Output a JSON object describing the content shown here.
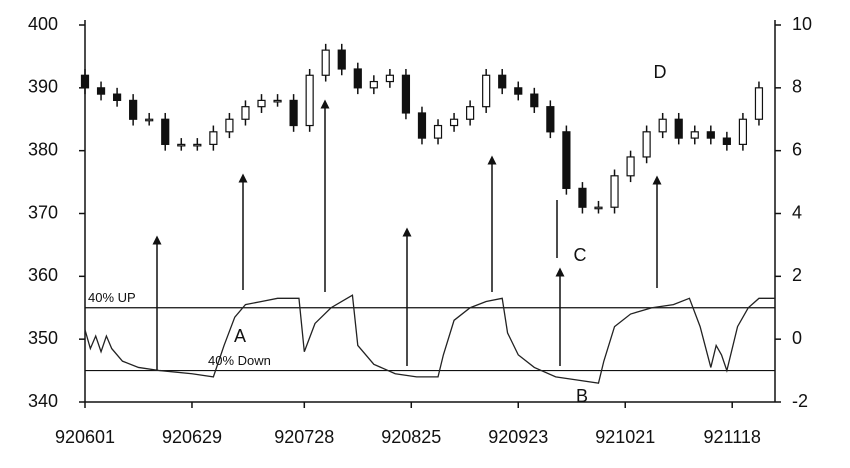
{
  "chart_data": {
    "type": "candlestick",
    "x": [
      0,
      3,
      6,
      9,
      12,
      15,
      18,
      21,
      24,
      27,
      30,
      33,
      36,
      39,
      42,
      45,
      48,
      51,
      54,
      57,
      60,
      63,
      66,
      69,
      72,
      75,
      78,
      81,
      84,
      87,
      90,
      93,
      96,
      99,
      102,
      105,
      108,
      111,
      114,
      117,
      120,
      123,
      126
    ],
    "open": [
      392,
      390,
      389,
      388,
      385,
      385,
      381,
      381,
      381,
      383,
      385,
      387,
      388,
      388,
      384,
      392,
      396,
      393,
      390,
      391,
      392,
      386,
      382,
      384,
      385,
      387,
      392,
      390,
      389,
      387,
      383,
      374,
      371,
      371,
      376,
      379,
      383,
      385,
      382,
      383,
      382,
      381,
      385
    ],
    "high": [
      393,
      391,
      390,
      389,
      386,
      386,
      382,
      382,
      384,
      386,
      388,
      389,
      389,
      389,
      393,
      397,
      397,
      394,
      392,
      393,
      393,
      387,
      385,
      386,
      388,
      393,
      393,
      391,
      390,
      388,
      384,
      375,
      372,
      377,
      380,
      384,
      386,
      386,
      384,
      384,
      383,
      386,
      391
    ],
    "low": [
      389,
      388,
      387,
      384,
      384,
      380,
      380,
      380,
      380,
      382,
      384,
      386,
      387,
      383,
      383,
      391,
      392,
      389,
      389,
      390,
      385,
      381,
      381,
      383,
      384,
      386,
      389,
      388,
      386,
      382,
      373,
      370,
      370,
      370,
      375,
      378,
      382,
      381,
      381,
      381,
      380,
      380,
      384
    ],
    "close": [
      390,
      389,
      388,
      385,
      385,
      381,
      381,
      381,
      383,
      385,
      387,
      388,
      388,
      384,
      392,
      396,
      393,
      390,
      391,
      392,
      386,
      382,
      384,
      385,
      387,
      392,
      390,
      389,
      387,
      383,
      374,
      371,
      371,
      376,
      379,
      383,
      385,
      382,
      383,
      382,
      381,
      385,
      390
    ],
    "color": "#111111",
    "xlim": [
      0,
      129
    ],
    "xticks": [
      {
        "value": 0,
        "label": "920601"
      },
      {
        "value": 20,
        "label": "920629"
      },
      {
        "value": 41,
        "label": "920728"
      },
      {
        "value": 61,
        "label": "920825"
      },
      {
        "value": 81,
        "label": "920923"
      },
      {
        "value": 101,
        "label": "921021"
      },
      {
        "value": 121,
        "label": "921118"
      }
    ],
    "ylim": [
      340,
      400
    ],
    "yticks": [
      340,
      350,
      360,
      370,
      380,
      390,
      400
    ],
    "y2lim": [
      -2,
      10
    ],
    "y2ticks": [
      -2,
      0,
      2,
      4,
      6,
      8,
      10
    ],
    "oscillator": {
      "axis": "y2",
      "color": "#222222",
      "x": [
        0,
        1,
        2,
        3,
        4,
        5,
        7,
        10,
        14,
        20,
        24,
        26,
        28,
        30,
        33,
        36,
        40,
        41,
        43,
        46,
        49,
        50,
        51,
        54,
        58,
        62,
        66,
        67,
        69,
        72,
        75,
        78,
        79,
        81,
        84,
        88,
        92,
        96,
        97,
        99,
        102,
        106,
        110,
        113,
        115,
        117,
        118,
        119,
        120,
        122,
        124,
        126,
        129
      ],
      "values": [
        0.3,
        -0.3,
        0.1,
        -0.4,
        0.1,
        -0.3,
        -0.7,
        -0.9,
        -1.0,
        -1.1,
        -1.2,
        -0.2,
        0.7,
        1.1,
        1.2,
        1.3,
        1.3,
        -0.4,
        0.5,
        1.0,
        1.3,
        1.4,
        -0.2,
        -0.8,
        -1.1,
        -1.2,
        -1.2,
        -0.5,
        0.6,
        1.0,
        1.2,
        1.3,
        0.2,
        -0.5,
        -0.9,
        -1.2,
        -1.3,
        -1.4,
        -0.7,
        0.4,
        0.8,
        1.0,
        1.1,
        1.3,
        0.4,
        -0.9,
        -0.2,
        -0.5,
        -1.0,
        0.4,
        1.0,
        1.3,
        1.3
      ]
    },
    "reference_lines": [
      {
        "value": 1,
        "label": "40% UP",
        "axis": "y2"
      },
      {
        "value": -1,
        "label": "40% Down",
        "axis": "y2"
      }
    ],
    "annotations": [
      "A",
      "B",
      "C",
      "D"
    ]
  }
}
